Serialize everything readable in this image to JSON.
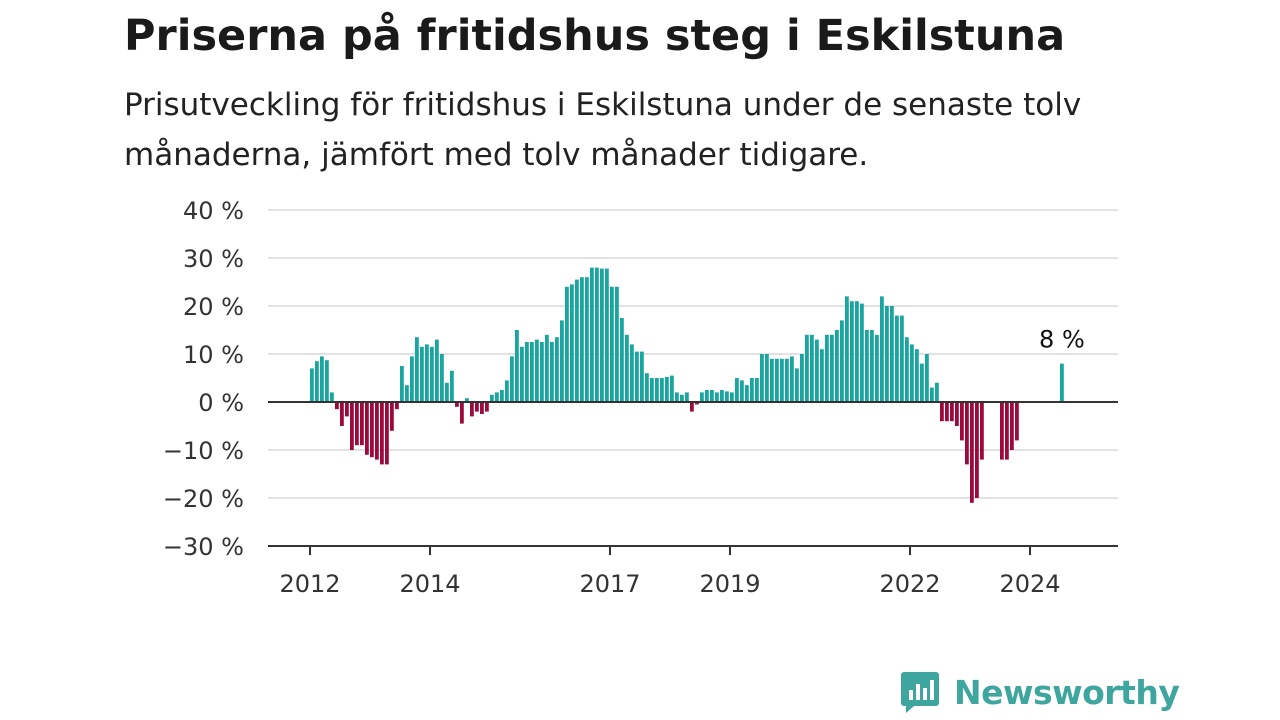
{
  "chart_data": {
    "type": "bar",
    "title": "Priserna på fritidshus steg i Eskilstuna",
    "subtitle": "Prisutveckling för fritidshus i Eskilstuna under de senaste tolv månaderna, jämfört med tolv månader tidigare.",
    "xlabel": "",
    "ylabel": "",
    "x_start": "2012-01",
    "ylim": [
      -30,
      40
    ],
    "yticks": [
      40,
      30,
      20,
      10,
      0,
      -10,
      -20,
      -30
    ],
    "ytick_labels": [
      "40 %",
      "30 %",
      "20 %",
      "10 %",
      "0 %",
      "−10 %",
      "−20 %",
      "−30 %"
    ],
    "xtick_labels": [
      "2012",
      "2014",
      "2017",
      "2019",
      "2022",
      "2024"
    ],
    "grid": true,
    "legend": "none",
    "colors": {
      "positive": "#1aa6a0",
      "negative": "#9c0a3c",
      "grid": "#d9d9d9",
      "axis": "#333333"
    },
    "values": [
      7,
      8.5,
      9.5,
      8.7,
      2,
      -1.5,
      -5,
      -3,
      -10,
      -9,
      -9,
      -11,
      -11.5,
      -12,
      -13,
      -13,
      -6,
      -1.5,
      7.5,
      3.5,
      9.5,
      13.5,
      11.5,
      12,
      11.5,
      13,
      10,
      4,
      6.5,
      -1,
      -4.5,
      0.8,
      -3,
      -2,
      -2.5,
      -2,
      1.5,
      2,
      2.5,
      4.5,
      9.5,
      15,
      11.5,
      12.5,
      12.5,
      13,
      12.5,
      14,
      12.5,
      13.5,
      17,
      24,
      24.5,
      25.5,
      26,
      26,
      28,
      28,
      27.8,
      27.8,
      24,
      24,
      17.5,
      14,
      12,
      10.5,
      10.5,
      6,
      5,
      5,
      5,
      5.2,
      5.5,
      2,
      1.5,
      2,
      -2,
      -0.5,
      2,
      2.5,
      2.5,
      2,
      2.5,
      2.2,
      2,
      5,
      4.5,
      3.5,
      5,
      5,
      10,
      10,
      9,
      9,
      9,
      9,
      9.5,
      7,
      10,
      14,
      14,
      13,
      11,
      14,
      14,
      15,
      17,
      22,
      21,
      21,
      20.5,
      15,
      15,
      14,
      22,
      20,
      20,
      18,
      18,
      13.5,
      12,
      11,
      8,
      10,
      3,
      4,
      -4,
      -4,
      -4,
      -5,
      -8,
      -13,
      -21,
      -20,
      -12,
      null,
      null,
      null,
      -12,
      -12,
      -10,
      -8,
      null,
      null,
      null,
      null,
      null,
      null,
      null,
      null,
      8
    ],
    "annotation": {
      "label": "8 %",
      "value": 8
    }
  },
  "brand": {
    "name": "Newsworthy",
    "logo_icon": "bar-chart-speech-bubble-icon"
  }
}
